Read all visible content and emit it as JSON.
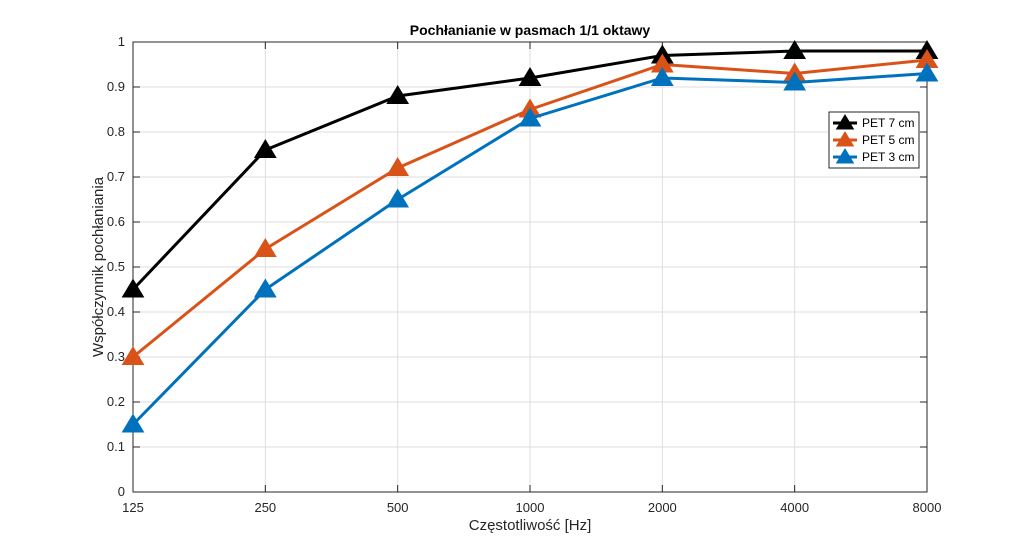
{
  "chart_data": {
    "type": "line",
    "title": "Pochłanianie w pasmach 1/1 oktawy",
    "xlabel": "Częstotliwość [Hz]",
    "ylabel": "Współczynnik pochłaniania",
    "categories": [
      "125",
      "250",
      "500",
      "1000",
      "2000",
      "4000",
      "8000"
    ],
    "ylim": [
      0,
      1
    ],
    "yticks": [
      "0",
      "0.1",
      "0.2",
      "0.3",
      "0.4",
      "0.5",
      "0.6",
      "0.7",
      "0.8",
      "0.9",
      "1"
    ],
    "grid": true,
    "legend_position": "top-right",
    "series": [
      {
        "name": "PET 7 cm",
        "color": "#000000",
        "values": [
          0.45,
          0.76,
          0.88,
          0.92,
          0.97,
          0.98,
          0.98
        ]
      },
      {
        "name": "PET 5 cm",
        "color": "#D95319",
        "values": [
          0.3,
          0.54,
          0.72,
          0.85,
          0.95,
          0.93,
          0.96
        ]
      },
      {
        "name": "PET 3 cm",
        "color": "#0072BD",
        "values": [
          0.15,
          0.45,
          0.65,
          0.83,
          0.92,
          0.91,
          0.93
        ]
      }
    ]
  }
}
